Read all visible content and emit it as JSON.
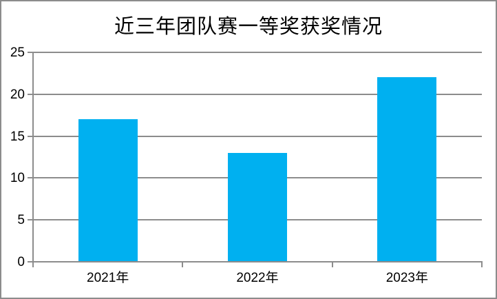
{
  "chart_data": {
    "type": "bar",
    "title": "近三年团队赛一等奖获奖情况",
    "categories": [
      "2021年",
      "2022年",
      "2023年"
    ],
    "values": [
      17,
      13,
      22
    ],
    "xlabel": "",
    "ylabel": "",
    "ylim": [
      0,
      25
    ],
    "yticks": [
      0,
      5,
      10,
      15,
      20,
      25
    ],
    "grid": true,
    "legend": false,
    "colors": {
      "bar_fill": "#00b0f0",
      "axis_line": "#8c8c8c",
      "gridline": "#8c8c8c",
      "text": "#000000",
      "frame_border": "#8c8c8c",
      "background": "#ffffff"
    }
  }
}
